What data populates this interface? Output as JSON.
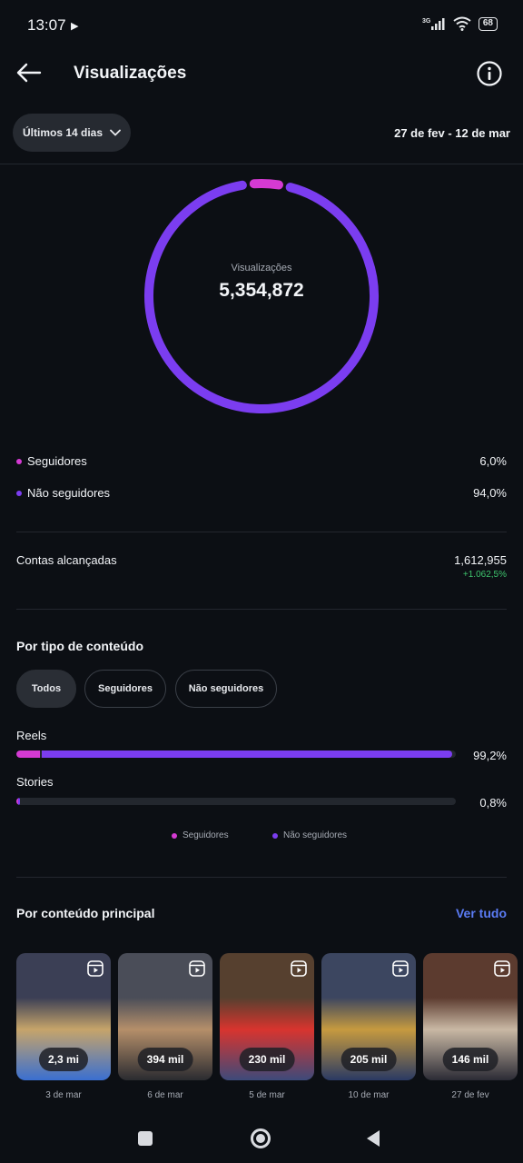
{
  "status_bar": {
    "time": "13:07",
    "network": "3G",
    "battery": "68"
  },
  "header": {
    "title": "Visualizações"
  },
  "filter": {
    "range_label": "Últimos 14 dias",
    "date_range": "27 de fev - 12 de mar"
  },
  "summary": {
    "label": "Visualizações",
    "total": "5,354,872",
    "followers_fraction": 0.06,
    "breakdown": [
      {
        "label": "Seguidores",
        "value": "6,0%",
        "color": "#d53ad3"
      },
      {
        "label": "Não seguidores",
        "value": "94,0%",
        "color": "#7b3df0"
      }
    ]
  },
  "accounts_reached": {
    "label": "Contas alcançadas",
    "value": "1,612,955",
    "growth": "+1.062,5%"
  },
  "content_type": {
    "title": "Por tipo de conteúdo",
    "chips": [
      "Todos",
      "Seguidores",
      "Não seguidores"
    ],
    "active_chip": "Todos",
    "rows": [
      {
        "name": "Reels",
        "pct": "99,2%",
        "total": 0.992,
        "followers_share": 0.055
      },
      {
        "name": "Stories",
        "pct": "0,8%",
        "total": 0.008,
        "followers_share": 0.5
      }
    ],
    "legend": [
      "Seguidores",
      "Não seguidores"
    ]
  },
  "top_content": {
    "title": "Por conteúdo principal",
    "see_all": "Ver tudo",
    "items": [
      {
        "views": "2,3 mi",
        "date": "3 de mar"
      },
      {
        "views": "394 mil",
        "date": "6 de mar"
      },
      {
        "views": "230 mil",
        "date": "5 de mar"
      },
      {
        "views": "205 mil",
        "date": "10 de mar"
      },
      {
        "views": "146 mil",
        "date": "27 de fev"
      }
    ]
  },
  "colors": {
    "followers": "#d53ad3",
    "non_followers": "#7b3df0",
    "accent_link": "#5b7cf5",
    "growth": "#3ec46d"
  }
}
